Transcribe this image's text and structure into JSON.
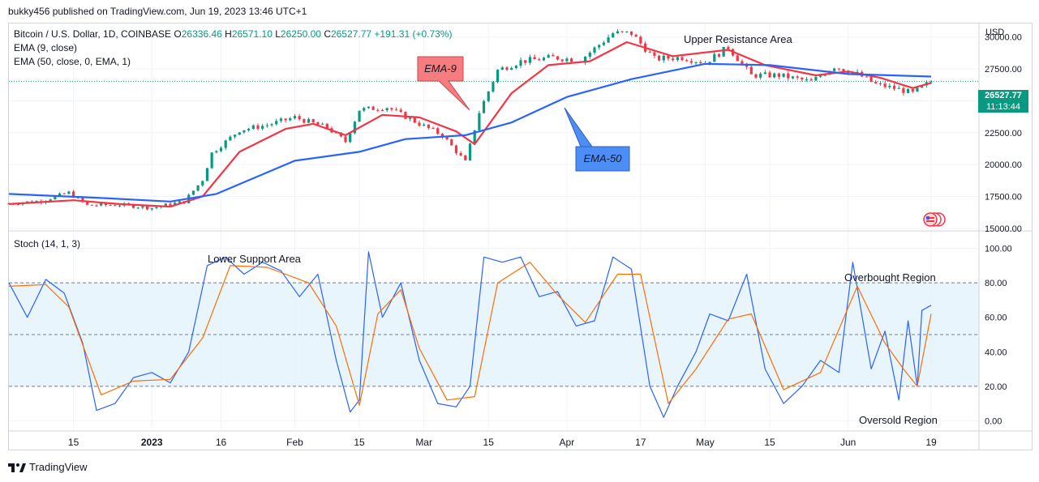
{
  "header": {
    "publisher_line": "bukky456 published on TradingView.com, Jun 19, 2023 13:46 UTC+1"
  },
  "legend": {
    "symbol": "Bitcoin / U.S. Dollar, 1D, COINBASE",
    "open_label": "O",
    "open": "26336.46",
    "high_label": "H",
    "high": "26571.10",
    "low_label": "L",
    "low": "26250.00",
    "close_label": "C",
    "close": "26527.77",
    "change": "+191.31 (+0.73%)",
    "ema9": "EMA (9, close)",
    "ema50": "EMA (50, close, 0, EMA, 1)",
    "stoch": "Stoch (14, 1, 3)"
  },
  "annotations": {
    "upper_resistance": "Upper Resistance Area",
    "lower_support": "Lower Support Area",
    "overbought": "Overbought Region",
    "oversold": "Oversold Region",
    "ema9_callout": "EMA-9",
    "ema50_callout": "EMA-50"
  },
  "price_axis": {
    "currency": "USD",
    "last_price": "26527.77",
    "countdown": "11:13:44"
  },
  "footer": {
    "brand": "TradingView"
  },
  "colors": {
    "up": "#089981",
    "down": "#f23645",
    "ema9": "#f23645",
    "ema50": "#2962ff",
    "stoch_k": "#2962ff",
    "stoch_d": "#ff6d00",
    "stoch_band": "#e3f2fd",
    "ema9_callout_bg": "#f77c80",
    "ema50_callout_bg": "#4c8df6"
  },
  "chart_data": [
    {
      "type": "candlestick",
      "title": "Bitcoin / U.S. Dollar, 1D, COINBASE",
      "ylabel": "USD",
      "ylim": [
        14800,
        31000
      ],
      "y_ticks": [
        "15000.00",
        "17500.00",
        "20000.00",
        "22500.00",
        "25000.00",
        "27500.00",
        "30000.00"
      ],
      "x_ticks": [
        "15",
        "2023",
        "16",
        "Feb",
        "15",
        "Mar",
        "15",
        "Apr",
        "17",
        "May",
        "15",
        "Jun",
        "19"
      ],
      "x_tick_dates": [
        "2022-12-15",
        "2023-01-01",
        "2023-01-16",
        "2023-02-01",
        "2023-02-15",
        "2023-03-01",
        "2023-03-15",
        "2023-04-01",
        "2023-04-17",
        "2023-05-01",
        "2023-05-15",
        "2023-06-01",
        "2023-06-19"
      ],
      "x_range": [
        "2022-12-01",
        "2023-06-19"
      ],
      "close_series": [
        [
          "2022-12-01",
          16950
        ],
        [
          "2022-12-08",
          17150
        ],
        [
          "2022-12-14",
          17800
        ],
        [
          "2022-12-18",
          16800
        ],
        [
          "2022-12-25",
          16850
        ],
        [
          "2023-01-01",
          16600
        ],
        [
          "2023-01-08",
          17100
        ],
        [
          "2023-01-12",
          18800
        ],
        [
          "2023-01-14",
          20900
        ],
        [
          "2023-01-20",
          22700
        ],
        [
          "2023-01-26",
          23100
        ],
        [
          "2023-02-01",
          23700
        ],
        [
          "2023-02-08",
          22900
        ],
        [
          "2023-02-12",
          21800
        ],
        [
          "2023-02-15",
          24300
        ],
        [
          "2023-02-21",
          24500
        ],
        [
          "2023-02-28",
          23200
        ],
        [
          "2023-03-05",
          22300
        ],
        [
          "2023-03-10",
          20200
        ],
        [
          "2023-03-13",
          24100
        ],
        [
          "2023-03-17",
          27400
        ],
        [
          "2023-03-22",
          28100
        ],
        [
          "2023-03-29",
          28400
        ],
        [
          "2023-04-04",
          28200
        ],
        [
          "2023-04-11",
          30300
        ],
        [
          "2023-04-15",
          30300
        ],
        [
          "2023-04-20",
          28300
        ],
        [
          "2023-04-26",
          28400
        ],
        [
          "2023-05-01",
          28000
        ],
        [
          "2023-05-06",
          29200
        ],
        [
          "2023-05-11",
          27000
        ],
        [
          "2023-05-17",
          27000
        ],
        [
          "2023-05-24",
          26500
        ],
        [
          "2023-05-29",
          27700
        ],
        [
          "2023-06-03",
          27100
        ],
        [
          "2023-06-07",
          26300
        ],
        [
          "2023-06-12",
          25900
        ],
        [
          "2023-06-15",
          25600
        ],
        [
          "2023-06-19",
          26527.77
        ]
      ],
      "series": [
        {
          "name": "EMA (9, close)",
          "values": [
            [
              "2022-12-01",
              16900
            ],
            [
              "2022-12-15",
              17200
            ],
            [
              "2022-12-25",
              16900
            ],
            [
              "2023-01-05",
              16700
            ],
            [
              "2023-01-12",
              17500
            ],
            [
              "2023-01-20",
              21000
            ],
            [
              "2023-01-30",
              22800
            ],
            [
              "2023-02-05",
              23200
            ],
            [
              "2023-02-12",
              22300
            ],
            [
              "2023-02-20",
              23900
            ],
            [
              "2023-02-28",
              23700
            ],
            [
              "2023-03-08",
              22600
            ],
            [
              "2023-03-12",
              21600
            ],
            [
              "2023-03-20",
              25600
            ],
            [
              "2023-03-28",
              27800
            ],
            [
              "2023-04-06",
              28100
            ],
            [
              "2023-04-14",
              29600
            ],
            [
              "2023-04-24",
              28500
            ],
            [
              "2023-05-06",
              29000
            ],
            [
              "2023-05-14",
              27800
            ],
            [
              "2023-05-25",
              27000
            ],
            [
              "2023-06-01",
              27300
            ],
            [
              "2023-06-08",
              26800
            ],
            [
              "2023-06-15",
              26000
            ],
            [
              "2023-06-19",
              26400
            ]
          ]
        },
        {
          "name": "EMA (50, close, 0, EMA, 1)",
          "values": [
            [
              "2022-12-01",
              17700
            ],
            [
              "2022-12-20",
              17400
            ],
            [
              "2023-01-05",
              17100
            ],
            [
              "2023-01-15",
              17700
            ],
            [
              "2023-02-01",
              20300
            ],
            [
              "2023-02-15",
              21000
            ],
            [
              "2023-02-25",
              22000
            ],
            [
              "2023-03-10",
              22300
            ],
            [
              "2023-03-20",
              23300
            ],
            [
              "2023-04-01",
              25300
            ],
            [
              "2023-04-15",
              26700
            ],
            [
              "2023-05-01",
              27900
            ],
            [
              "2023-05-15",
              27800
            ],
            [
              "2023-06-01",
              27100
            ],
            [
              "2023-06-19",
              26900
            ]
          ]
        }
      ]
    },
    {
      "type": "line",
      "title": "Stoch (14, 1, 3)",
      "ylim": [
        -5,
        105
      ],
      "y_ticks": [
        "0.00",
        "20.00",
        "40.00",
        "60.00",
        "80.00",
        "100.00"
      ],
      "bands": {
        "upper": 80,
        "middle": 50,
        "lower": 20
      },
      "series": [
        {
          "name": "%K",
          "values": [
            [
              "2022-12-01",
              80
            ],
            [
              "2022-12-05",
              60
            ],
            [
              "2022-12-09",
              82
            ],
            [
              "2022-12-13",
              74
            ],
            [
              "2022-12-17",
              45
            ],
            [
              "2022-12-20",
              6
            ],
            [
              "2022-12-24",
              10
            ],
            [
              "2022-12-28",
              25
            ],
            [
              "2023-01-01",
              28
            ],
            [
              "2023-01-05",
              22
            ],
            [
              "2023-01-09",
              40
            ],
            [
              "2023-01-13",
              90
            ],
            [
              "2023-01-17",
              95
            ],
            [
              "2023-01-21",
              85
            ],
            [
              "2023-01-25",
              92
            ],
            [
              "2023-01-29",
              87
            ],
            [
              "2023-02-02",
              72
            ],
            [
              "2023-02-06",
              85
            ],
            [
              "2023-02-10",
              35
            ],
            [
              "2023-02-13",
              5
            ],
            [
              "2023-02-15",
              12
            ],
            [
              "2023-02-17",
              98
            ],
            [
              "2023-02-20",
              60
            ],
            [
              "2023-02-24",
              80
            ],
            [
              "2023-02-28",
              35
            ],
            [
              "2023-03-04",
              10
            ],
            [
              "2023-03-08",
              8
            ],
            [
              "2023-03-11",
              20
            ],
            [
              "2023-03-14",
              95
            ],
            [
              "2023-03-18",
              92
            ],
            [
              "2023-03-22",
              95
            ],
            [
              "2023-03-26",
              72
            ],
            [
              "2023-03-30",
              75
            ],
            [
              "2023-04-03",
              55
            ],
            [
              "2023-04-07",
              58
            ],
            [
              "2023-04-11",
              95
            ],
            [
              "2023-04-15",
              88
            ],
            [
              "2023-04-19",
              20
            ],
            [
              "2023-04-22",
              2
            ],
            [
              "2023-04-25",
              20
            ],
            [
              "2023-04-29",
              40
            ],
            [
              "2023-05-02",
              62
            ],
            [
              "2023-05-06",
              58
            ],
            [
              "2023-05-10",
              85
            ],
            [
              "2023-05-14",
              30
            ],
            [
              "2023-05-18",
              10
            ],
            [
              "2023-05-22",
              20
            ],
            [
              "2023-05-26",
              35
            ],
            [
              "2023-05-30",
              28
            ],
            [
              "2023-06-02",
              92
            ],
            [
              "2023-06-06",
              30
            ],
            [
              "2023-06-09",
              52
            ],
            [
              "2023-06-12",
              12
            ],
            [
              "2023-06-14",
              58
            ],
            [
              "2023-06-16",
              20
            ],
            [
              "2023-06-17",
              64
            ],
            [
              "2023-06-19",
              67
            ]
          ]
        },
        {
          "name": "%D",
          "values": [
            [
              "2022-12-01",
              78
            ],
            [
              "2022-12-09",
              79
            ],
            [
              "2022-12-14",
              66
            ],
            [
              "2022-12-21",
              15
            ],
            [
              "2022-12-28",
              23
            ],
            [
              "2023-01-05",
              24
            ],
            [
              "2023-01-12",
              48
            ],
            [
              "2023-01-18",
              90
            ],
            [
              "2023-01-26",
              89
            ],
            [
              "2023-02-04",
              80
            ],
            [
              "2023-02-10",
              55
            ],
            [
              "2023-02-15",
              9
            ],
            [
              "2023-02-19",
              62
            ],
            [
              "2023-02-24",
              76
            ],
            [
              "2023-02-28",
              42
            ],
            [
              "2023-03-06",
              12
            ],
            [
              "2023-03-12",
              14
            ],
            [
              "2023-03-17",
              80
            ],
            [
              "2023-03-24",
              92
            ],
            [
              "2023-03-30",
              73
            ],
            [
              "2023-04-05",
              57
            ],
            [
              "2023-04-12",
              85
            ],
            [
              "2023-04-17",
              85
            ],
            [
              "2023-04-23",
              10
            ],
            [
              "2023-04-29",
              30
            ],
            [
              "2023-05-06",
              59
            ],
            [
              "2023-05-11",
              62
            ],
            [
              "2023-05-18",
              18
            ],
            [
              "2023-05-26",
              28
            ],
            [
              "2023-06-03",
              78
            ],
            [
              "2023-06-09",
              45
            ],
            [
              "2023-06-13",
              30
            ],
            [
              "2023-06-16",
              20
            ],
            [
              "2023-06-19",
              62
            ]
          ]
        }
      ]
    }
  ]
}
